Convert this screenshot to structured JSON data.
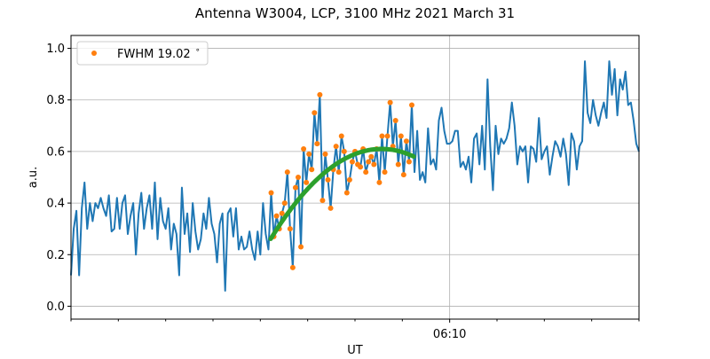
{
  "chart_data": {
    "type": "line",
    "title": "Antenna W3004, LCP, 3100 MHz 2021 March 31",
    "xlabel": "UT",
    "ylabel": "a.u.",
    "x_units": "minutes after 06:00 UT",
    "xlim": [
      2,
      14
    ],
    "ylim": [
      -0.05,
      1.05
    ],
    "yticks": [
      0.0,
      0.2,
      0.4,
      0.6,
      0.8,
      1.0
    ],
    "ytick_labels": [
      "0.0",
      "0.2",
      "0.4",
      "0.6",
      "0.8",
      "1.0"
    ],
    "xticks_major": [
      10
    ],
    "xtick_labels": [
      "06:10"
    ],
    "xticks_minor": [
      2,
      3,
      4,
      5,
      6,
      7,
      8,
      9,
      11,
      12,
      13,
      14
    ],
    "grid": true,
    "legend": {
      "position": "top-left",
      "entries": [
        {
          "label": "FWHM 19.02$^\\circ$",
          "display": "FWHM 19.02",
          "suffix": "∘",
          "series": "fit-points"
        }
      ]
    },
    "series": [
      {
        "name": "signal",
        "color": "#1f77b4",
        "x_start": 2,
        "x_end": 14,
        "values": [
          0.12,
          0.3,
          0.37,
          0.12,
          0.38,
          0.48,
          0.3,
          0.4,
          0.33,
          0.4,
          0.38,
          0.42,
          0.38,
          0.35,
          0.43,
          0.29,
          0.3,
          0.42,
          0.3,
          0.4,
          0.43,
          0.28,
          0.35,
          0.4,
          0.2,
          0.36,
          0.44,
          0.3,
          0.38,
          0.43,
          0.3,
          0.48,
          0.26,
          0.42,
          0.33,
          0.3,
          0.38,
          0.22,
          0.32,
          0.28,
          0.12,
          0.46,
          0.28,
          0.36,
          0.21,
          0.4,
          0.29,
          0.22,
          0.26,
          0.36,
          0.3,
          0.42,
          0.32,
          0.28,
          0.17,
          0.32,
          0.36,
          0.06,
          0.36,
          0.38,
          0.27,
          0.38,
          0.22,
          0.27,
          0.22,
          0.23,
          0.29,
          0.22,
          0.18,
          0.29,
          0.2,
          0.4,
          0.28,
          0.22,
          0.44,
          0.27,
          0.35,
          0.3,
          0.36,
          0.4,
          0.52,
          0.3,
          0.15,
          0.46,
          0.5,
          0.23,
          0.61,
          0.48,
          0.59,
          0.53,
          0.75,
          0.63,
          0.82,
          0.41,
          0.59,
          0.49,
          0.38,
          0.53,
          0.62,
          0.52,
          0.66,
          0.6,
          0.44,
          0.49,
          0.56,
          0.6,
          0.55,
          0.54,
          0.61,
          0.52,
          0.56,
          0.58,
          0.55,
          0.61,
          0.48,
          0.66,
          0.52,
          0.66,
          0.79,
          0.62,
          0.72,
          0.55,
          0.66,
          0.51,
          0.64,
          0.56,
          0.78,
          0.52,
          0.68,
          0.49,
          0.52,
          0.48,
          0.69,
          0.55,
          0.57,
          0.53,
          0.72,
          0.77,
          0.68,
          0.63,
          0.63,
          0.64,
          0.68,
          0.68,
          0.54,
          0.56,
          0.53,
          0.58,
          0.48,
          0.65,
          0.67,
          0.55,
          0.7,
          0.53,
          0.88,
          0.62,
          0.45,
          0.7,
          0.59,
          0.65,
          0.63,
          0.65,
          0.69,
          0.79,
          0.7,
          0.55,
          0.62,
          0.6,
          0.62,
          0.48,
          0.62,
          0.61,
          0.56,
          0.73,
          0.57,
          0.6,
          0.62,
          0.51,
          0.58,
          0.64,
          0.62,
          0.58,
          0.65,
          0.59,
          0.47,
          0.67,
          0.64,
          0.53,
          0.62,
          0.64,
          0.95,
          0.75,
          0.71,
          0.8,
          0.74,
          0.7,
          0.75,
          0.79,
          0.73,
          0.95,
          0.82,
          0.92,
          0.74,
          0.88,
          0.84,
          0.91,
          0.78,
          0.79,
          0.72,
          0.63,
          0.6
        ]
      },
      {
        "name": "fit-points",
        "color": "#ff7f0e",
        "source": "signal",
        "x_window": [
          6.22,
          9.24
        ]
      },
      {
        "name": "beam-fit",
        "color": "#2ca02c",
        "type": "parabola",
        "peak_x": 8.56,
        "peak_y": 0.61,
        "curvature": 0.0637,
        "x_window": [
          6.22,
          9.24
        ]
      }
    ]
  }
}
